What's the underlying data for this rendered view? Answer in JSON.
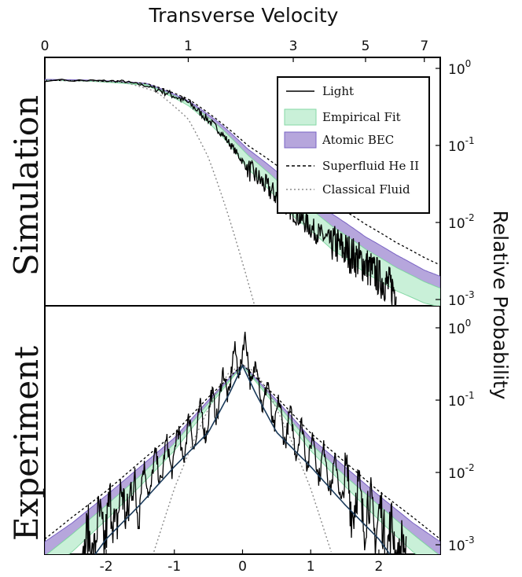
{
  "figure": {
    "top_axis_title": "Transverse Velocity",
    "right_axis_title": "Relative Probability",
    "panel_top_label": "Simulation",
    "panel_bottom_label": "Experiment"
  },
  "colors": {
    "light": "#000000",
    "empirical_fill": "#c9f0d8",
    "empirical_edge": "#86d9a6",
    "atomic_fill": "#b6a6dc",
    "atomic_edge": "#7a64c4",
    "superfluid": "#000000",
    "classical": "#8a8a8a"
  },
  "chart_data": [
    {
      "type": "line",
      "panel": "Simulation",
      "xlabel": "Transverse Velocity",
      "ylabel": "Relative Probability",
      "xscale": "sqrt",
      "yscale": "log",
      "xlim": [
        0,
        7.6
      ],
      "ylim": [
        0.001,
        1
      ],
      "x_ticks": [
        0,
        1,
        3,
        5,
        7
      ],
      "y_ticks": [
        "10^0",
        "10^-1",
        "10^-2",
        "10^-3"
      ],
      "legend_position": "top-right",
      "legend": [
        {
          "label": "Light",
          "style": "solid-line"
        },
        {
          "label": "Empirical Fit",
          "style": "green-band"
        },
        {
          "label": "Atomic BEC",
          "style": "purple-band"
        },
        {
          "label": "Superfluid He II",
          "style": "dashed-line"
        },
        {
          "label": "Classical Fluid",
          "style": "dotted-line"
        }
      ],
      "series": [
        {
          "name": "Light",
          "x": [
            0,
            0.3,
            0.6,
            1.0,
            1.5,
            2.0,
            2.5,
            3.0,
            3.5,
            4.0,
            4.5,
            5.0,
            5.5,
            6.0
          ],
          "y": [
            0.7,
            0.68,
            0.55,
            0.36,
            0.15,
            0.05,
            0.025,
            0.014,
            0.008,
            0.0055,
            0.004,
            0.0028,
            0.0018,
            0.0013
          ]
        },
        {
          "name": "Empirical Fit",
          "x": [
            0,
            0.5,
            1.0,
            1.5,
            2.0,
            3.0,
            4.0,
            5.0,
            6.0,
            7.0,
            7.6
          ],
          "y_low": [
            0.7,
            0.6,
            0.33,
            0.14,
            0.05,
            0.012,
            0.0045,
            0.0022,
            0.0013,
            0.0009,
            0.0008
          ],
          "y_high": [
            0.7,
            0.62,
            0.36,
            0.17,
            0.075,
            0.022,
            0.009,
            0.0045,
            0.0026,
            0.0017,
            0.0014
          ]
        },
        {
          "name": "Atomic BEC",
          "x": [
            0,
            0.5,
            1.0,
            1.5,
            2.0,
            3.0,
            4.0,
            5.0,
            6.0,
            7.0,
            7.6
          ],
          "y_low": [
            0.7,
            0.62,
            0.36,
            0.17,
            0.075,
            0.022,
            0.009,
            0.0045,
            0.0026,
            0.0017,
            0.0014
          ],
          "y_high": [
            0.72,
            0.64,
            0.38,
            0.19,
            0.09,
            0.03,
            0.013,
            0.0065,
            0.0038,
            0.0024,
            0.002
          ]
        },
        {
          "name": "Superfluid He II",
          "x": [
            0,
            0.5,
            1.0,
            1.5,
            2.0,
            3.0,
            4.0,
            5.0,
            6.0,
            7.0,
            7.6
          ],
          "y": [
            0.7,
            0.64,
            0.4,
            0.2,
            0.1,
            0.038,
            0.018,
            0.0095,
            0.0055,
            0.0035,
            0.0028
          ]
        },
        {
          "name": "Classical Fluid",
          "x": [
            0,
            0.3,
            0.6,
            1.0,
            1.3,
            1.6,
            1.9,
            2.2
          ],
          "y": [
            0.7,
            0.66,
            0.5,
            0.22,
            0.07,
            0.015,
            0.003,
            0.0006
          ]
        }
      ]
    },
    {
      "type": "line",
      "panel": "Experiment",
      "xlabel": "",
      "ylabel": "Relative Probability",
      "yscale": "log",
      "xlim": [
        -2.9,
        2.9
      ],
      "ylim": [
        0.001,
        1
      ],
      "x_ticks": [
        -2,
        -1,
        0,
        1,
        2
      ],
      "y_ticks": [
        "10^0",
        "10^-1",
        "10^-2",
        "10^-3"
      ],
      "series": [
        {
          "name": "Light",
          "x": [
            -2.4,
            -2.0,
            -1.5,
            -1.0,
            -0.5,
            -0.2,
            0,
            0.2,
            0.5,
            1.0,
            1.5,
            2.0,
            2.4
          ],
          "y": [
            0.0012,
            0.004,
            0.012,
            0.04,
            0.12,
            0.4,
            1.0,
            0.4,
            0.12,
            0.04,
            0.012,
            0.004,
            0.0012
          ]
        },
        {
          "name": "Empirical Fit",
          "x": [
            -2.9,
            -2.5,
            -2.0,
            -1.5,
            -1.0,
            -0.5,
            0,
            0.5,
            1.0,
            1.5,
            2.0,
            2.5,
            2.9
          ],
          "y_low": [
            0.0004,
            0.0008,
            0.0022,
            0.0065,
            0.02,
            0.08,
            0.3,
            0.08,
            0.02,
            0.0065,
            0.0022,
            0.0008,
            0.0004
          ],
          "y_high": [
            0.0007,
            0.0014,
            0.0035,
            0.009,
            0.025,
            0.09,
            0.3,
            0.09,
            0.025,
            0.009,
            0.0035,
            0.0014,
            0.0007
          ]
        },
        {
          "name": "Atomic BEC",
          "x": [
            -2.9,
            -2.5,
            -2.0,
            -1.5,
            -1.0,
            -0.5,
            0,
            0.5,
            1.0,
            1.5,
            2.0,
            2.5,
            2.9
          ],
          "y_low": [
            0.0007,
            0.0014,
            0.0035,
            0.009,
            0.025,
            0.09,
            0.3,
            0.09,
            0.025,
            0.009,
            0.0035,
            0.0014,
            0.0007
          ],
          "y_high": [
            0.0011,
            0.002,
            0.0048,
            0.012,
            0.03,
            0.1,
            0.31,
            0.1,
            0.03,
            0.012,
            0.0048,
            0.002,
            0.0011
          ]
        },
        {
          "name": "Superfluid He II",
          "x": [
            -2.9,
            -2.5,
            -2.0,
            -1.5,
            -1.0,
            -0.5,
            0,
            0.5,
            1.0,
            1.5,
            2.0,
            2.5,
            2.9
          ],
          "y": [
            0.0012,
            0.0024,
            0.0055,
            0.014,
            0.035,
            0.11,
            0.31,
            0.11,
            0.035,
            0.014,
            0.0055,
            0.0024,
            0.0012
          ]
        },
        {
          "name": "Classical Fluid",
          "x": [
            -1.3,
            -1.0,
            -0.7,
            -0.4,
            -0.2,
            0,
            0.2,
            0.4,
            0.7,
            1.0,
            1.3
          ],
          "y": [
            0.0008,
            0.006,
            0.03,
            0.12,
            0.24,
            0.31,
            0.24,
            0.12,
            0.03,
            0.006,
            0.0008
          ]
        }
      ]
    }
  ]
}
